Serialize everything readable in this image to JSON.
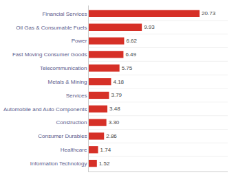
{
  "chart_data": {
    "type": "bar",
    "orientation": "horizontal",
    "categories": [
      "Information Technology",
      "Healthcare",
      "Consumer Durables",
      "Construction",
      "Automobile and Auto Components",
      "Services",
      "Metals & Mining",
      "Telecommunication",
      "Fast Moving Consumer Goods",
      "Power",
      "Oil Gas & Consumable Fuels",
      "Financial Services"
    ],
    "values": [
      1.52,
      1.74,
      2.86,
      3.3,
      3.48,
      3.79,
      4.18,
      5.75,
      6.49,
      6.62,
      9.93,
      20.73
    ],
    "value_labels": [
      "1.52",
      "1.74",
      "2.86",
      "3.30",
      "3.48",
      "3.79",
      "4.18",
      "5.75",
      "6.49",
      "6.62",
      "9.93",
      "20.73"
    ],
    "color": "#d63027",
    "xlim": [
      0,
      26
    ],
    "data_labels": true,
    "tick_labels": "y",
    "grid": true
  }
}
